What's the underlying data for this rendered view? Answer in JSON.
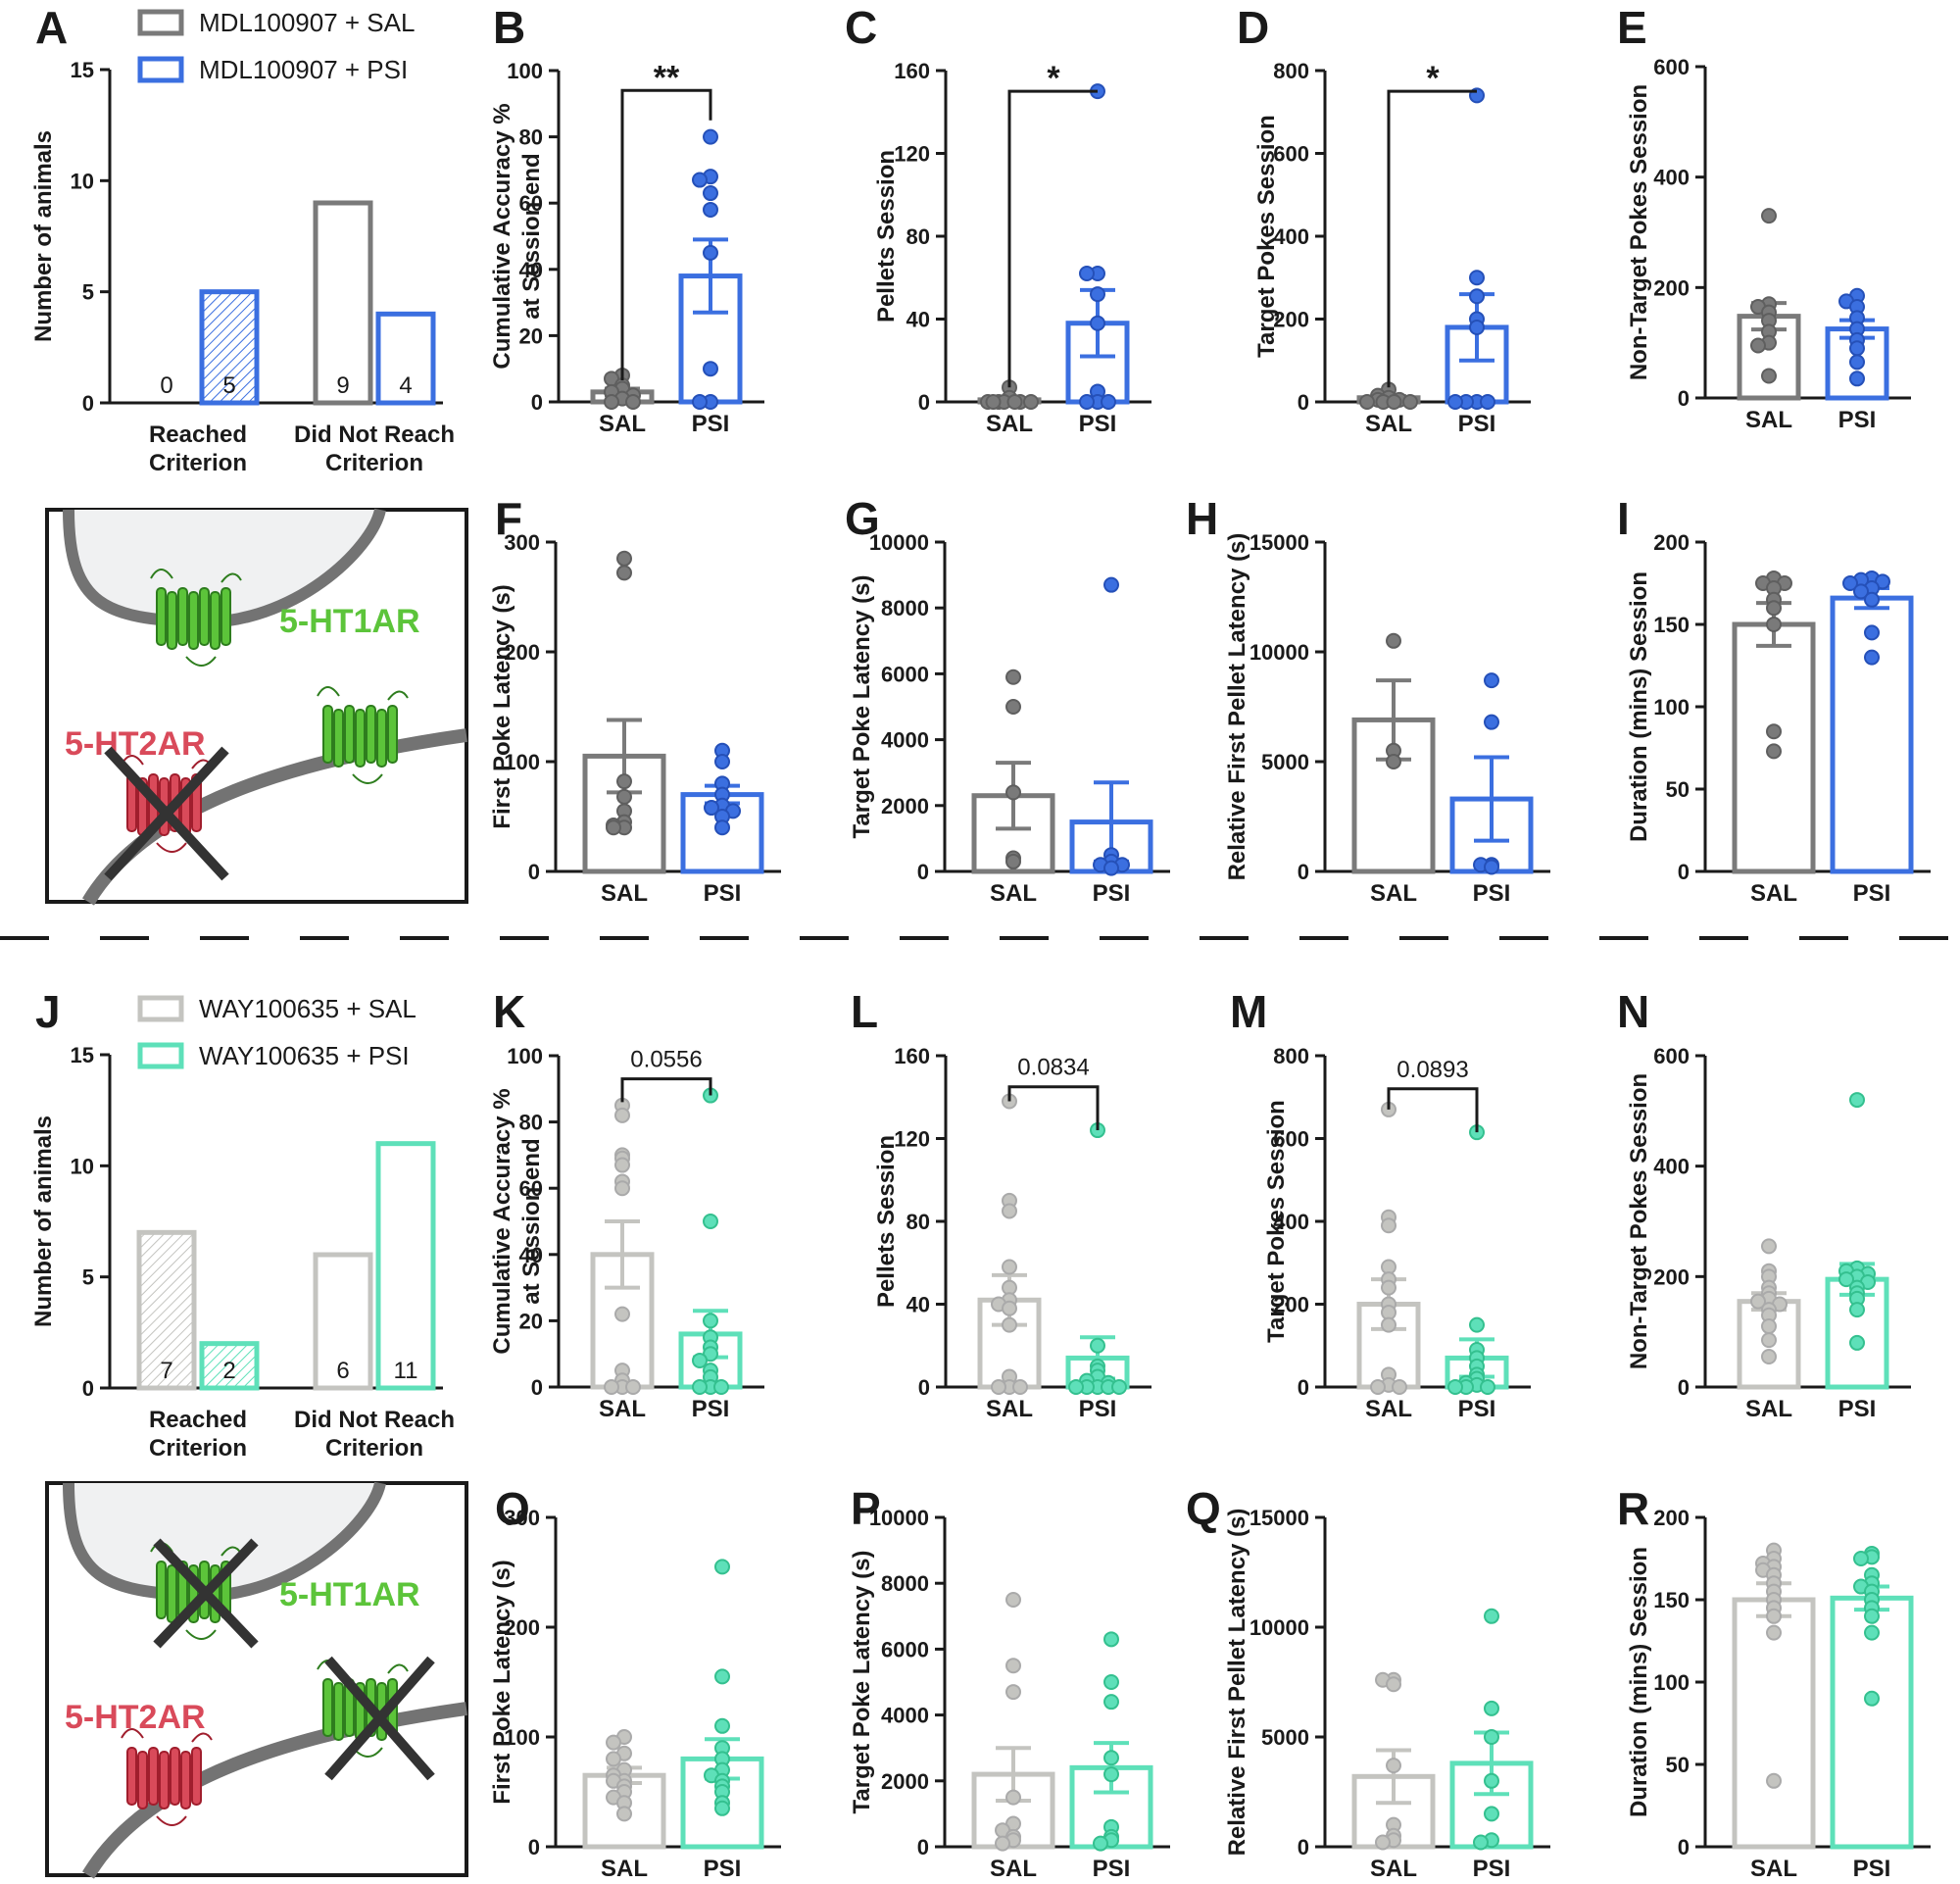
{
  "colors": {
    "sal_mdl": "#7a7a7a",
    "psi_mdl": "#3b6fe0",
    "sal_way": "#c4c4c0",
    "psi_way": "#5ee0b9",
    "ht1a": "#5cc43a",
    "ht2a": "#d94a5a",
    "ht2a_dark": "#a01e2d",
    "membrane": "#737373",
    "text": "#1a1a1a"
  },
  "legends": {
    "mdl": [
      "MDL100907 + SAL",
      "MDL100907 + PSI"
    ],
    "way": [
      "WAY100635 + SAL",
      "WAY100635 + PSI"
    ]
  },
  "schematics": [
    {
      "ht1a_label": "5-HT1AR",
      "ht2a_label": "5-HT2AR",
      "crossed": "5-HT2AR"
    },
    {
      "ht1a_label": "5-HT1AR",
      "ht2a_label": "5-HT2AR",
      "crossed": "5-HT1AR"
    }
  ],
  "chart_data": [
    {
      "panel": "A",
      "type": "bar",
      "ylabel": "Number of animals",
      "ylim": [
        0,
        15
      ],
      "yticks": [
        0,
        5,
        10,
        15
      ],
      "categories": [
        "Reached Criterion",
        "Did Not Reach Criterion"
      ],
      "series": [
        {
          "name": "MDL100907 + SAL",
          "values": [
            0,
            9
          ]
        },
        {
          "name": "MDL100907 + PSI",
          "values": [
            5,
            4
          ]
        }
      ]
    },
    {
      "panel": "B",
      "type": "bar",
      "ylabel": [
        "Cumulative Accuracy %",
        "at Session end"
      ],
      "ylim": [
        0,
        100
      ],
      "yticks": [
        0,
        20,
        40,
        60,
        80,
        100
      ],
      "categories": [
        "SAL",
        "PSI"
      ],
      "means": [
        3,
        38
      ],
      "sem": [
        1,
        11
      ],
      "points": [
        [
          8,
          7,
          5,
          4,
          3,
          2,
          1,
          0,
          0
        ],
        [
          80,
          68,
          67,
          63,
          58,
          45,
          10,
          0,
          0
        ]
      ],
      "sig": "**"
    },
    {
      "panel": "C",
      "type": "bar",
      "ylabel": "Pellets Session",
      "ylim": [
        0,
        160
      ],
      "yticks": [
        0,
        40,
        80,
        120,
        160
      ],
      "categories": [
        "SAL",
        "PSI"
      ],
      "means": [
        1,
        38
      ],
      "sem": [
        0.7,
        16
      ],
      "points": [
        [
          7,
          2,
          0,
          0,
          0,
          0,
          0,
          0,
          0
        ],
        [
          150,
          62,
          62,
          52,
          38,
          5,
          0,
          0,
          0
        ]
      ],
      "sig": "*"
    },
    {
      "panel": "D",
      "type": "bar",
      "ylabel": "Target Pokes Session",
      "ylim": [
        0,
        800
      ],
      "yticks": [
        0,
        200,
        400,
        600,
        800
      ],
      "categories": [
        "SAL",
        "PSI"
      ],
      "means": [
        10,
        180
      ],
      "sem": [
        4,
        80
      ],
      "points": [
        [
          30,
          15,
          10,
          5,
          5,
          0,
          0,
          0,
          0
        ],
        [
          740,
          300,
          255,
          200,
          180,
          0,
          0,
          0,
          0
        ]
      ],
      "sig": "*"
    },
    {
      "panel": "E",
      "type": "bar",
      "ylabel": "Non-Target Pokes Session",
      "ylim": [
        0,
        600
      ],
      "yticks": [
        0,
        200,
        400,
        600
      ],
      "categories": [
        "SAL",
        "PSI"
      ],
      "means": [
        148,
        125
      ],
      "sem": [
        24,
        16
      ],
      "points": [
        [
          330,
          170,
          165,
          155,
          140,
          120,
          100,
          95,
          40
        ],
        [
          185,
          175,
          165,
          145,
          125,
          105,
          90,
          65,
          35
        ]
      ],
      "sig": ""
    },
    {
      "panel": "F",
      "type": "bar",
      "ylabel": "First Poke Latency (s)",
      "ylim": [
        0,
        300
      ],
      "yticks": [
        0,
        100,
        200,
        300
      ],
      "categories": [
        "SAL",
        "PSI"
      ],
      "means": [
        105,
        70
      ],
      "sem": [
        33,
        8
      ],
      "points": [
        [
          285,
          272,
          82,
          68,
          55,
          45,
          42,
          40,
          40
        ],
        [
          110,
          100,
          80,
          70,
          60,
          58,
          55,
          50,
          40
        ]
      ],
      "sig": ""
    },
    {
      "panel": "G",
      "type": "bar",
      "ylabel": "Target Poke Latency (s)",
      "ylim": [
        0,
        10000
      ],
      "yticks": [
        0,
        2000,
        4000,
        6000,
        8000,
        10000
      ],
      "categories": [
        "SAL",
        "PSI"
      ],
      "means": [
        2300,
        1500
      ],
      "sem": [
        1000,
        1200
      ],
      "points": [
        [
          5900,
          5000,
          2400,
          400,
          300
        ],
        [
          8700,
          500,
          300,
          200,
          200,
          100
        ]
      ],
      "sig": ""
    },
    {
      "panel": "H",
      "type": "bar",
      "ylabel": "Relative First Pellet Latency (s)",
      "ylim": [
        0,
        15000
      ],
      "yticks": [
        0,
        5000,
        10000,
        15000
      ],
      "categories": [
        "SAL",
        "PSI"
      ],
      "means": [
        6900,
        3300
      ],
      "sem": [
        1800,
        1900
      ],
      "points": [
        [
          10500,
          5500,
          5000
        ],
        [
          8700,
          6800,
          300,
          300,
          200
        ]
      ],
      "sig": ""
    },
    {
      "panel": "I",
      "type": "bar",
      "ylabel": "Duration (mins) Session",
      "ylim": [
        0,
        200
      ],
      "yticks": [
        0,
        50,
        100,
        150,
        200
      ],
      "categories": [
        "SAL",
        "PSI"
      ],
      "means": [
        150,
        166
      ],
      "sem": [
        13,
        6
      ],
      "points": [
        [
          178,
          175,
          175,
          172,
          165,
          160,
          150,
          85,
          73
        ],
        [
          178,
          177,
          176,
          175,
          172,
          170,
          165,
          145,
          130
        ]
      ],
      "sig": ""
    },
    {
      "panel": "J",
      "type": "bar",
      "ylabel": "Number of animals",
      "ylim": [
        0,
        15
      ],
      "yticks": [
        0,
        5,
        10,
        15
      ],
      "categories": [
        "Reached Criterion",
        "Did Not Reach Criterion"
      ],
      "series": [
        {
          "name": "WAY100635 + SAL",
          "values": [
            7,
            6
          ]
        },
        {
          "name": "WAY100635 + PSI",
          "values": [
            2,
            11
          ]
        }
      ]
    },
    {
      "panel": "K",
      "type": "bar",
      "ylabel": [
        "Cumulative Accuracy %",
        "at Session end"
      ],
      "ylim": [
        0,
        100
      ],
      "yticks": [
        0,
        20,
        40,
        60,
        80,
        100
      ],
      "categories": [
        "SAL",
        "PSI"
      ],
      "means": [
        40,
        16
      ],
      "sem": [
        10,
        7
      ],
      "points": [
        [
          85,
          82,
          70,
          69,
          67,
          62,
          60,
          22,
          5,
          2,
          0,
          0,
          0
        ],
        [
          88,
          50,
          20,
          15,
          12,
          10,
          8,
          5,
          3,
          0,
          0,
          0
        ]
      ],
      "sig": "0.0556"
    },
    {
      "panel": "L",
      "type": "bar",
      "ylabel": "Pellets Session",
      "ylim": [
        0,
        160
      ],
      "yticks": [
        0,
        40,
        80,
        120,
        160
      ],
      "categories": [
        "SAL",
        "PSI"
      ],
      "means": [
        42,
        14
      ],
      "sem": [
        12,
        10
      ],
      "points": [
        [
          138,
          90,
          85,
          58,
          48,
          42,
          40,
          38,
          30,
          5,
          0,
          0,
          0
        ],
        [
          124,
          20,
          10,
          8,
          5,
          3,
          2,
          0,
          0,
          0,
          0,
          0
        ]
      ],
      "sig": "0.0834"
    },
    {
      "panel": "M",
      "type": "bar",
      "ylabel": "Target Pokes Session",
      "ylim": [
        0,
        800
      ],
      "yticks": [
        0,
        200,
        400,
        600,
        800
      ],
      "categories": [
        "SAL",
        "PSI"
      ],
      "means": [
        200,
        70
      ],
      "sem": [
        60,
        45
      ],
      "points": [
        [
          670,
          410,
          390,
          290,
          260,
          240,
          200,
          180,
          150,
          30,
          5,
          0,
          0
        ],
        [
          615,
          150,
          90,
          70,
          50,
          30,
          20,
          10,
          5,
          0,
          0,
          0
        ]
      ],
      "sig": "0.0893"
    },
    {
      "panel": "N",
      "type": "bar",
      "ylabel": "Non-Target Pokes Session",
      "ylim": [
        0,
        600
      ],
      "yticks": [
        0,
        200,
        400,
        600
      ],
      "categories": [
        "SAL",
        "PSI"
      ],
      "means": [
        155,
        195
      ],
      "sem": [
        15,
        28
      ],
      "points": [
        [
          255,
          210,
          200,
          180,
          170,
          160,
          155,
          150,
          140,
          130,
          110,
          85,
          55
        ],
        [
          520,
          215,
          210,
          205,
          200,
          195,
          190,
          180,
          170,
          160,
          140,
          80
        ]
      ],
      "sig": ""
    },
    {
      "panel": "O",
      "type": "bar",
      "ylabel": "First Poke Latency (s)",
      "ylim": [
        0,
        300
      ],
      "yticks": [
        0,
        100,
        200,
        300
      ],
      "categories": [
        "SAL",
        "PSI"
      ],
      "means": [
        65,
        80
      ],
      "sem": [
        7,
        18
      ],
      "points": [
        [
          100,
          95,
          85,
          80,
          70,
          65,
          60,
          60,
          55,
          50,
          45,
          40,
          30
        ],
        [
          255,
          155,
          110,
          90,
          80,
          70,
          65,
          60,
          55,
          50,
          40,
          35
        ]
      ],
      "sig": ""
    },
    {
      "panel": "P",
      "type": "bar",
      "ylabel": "Target Poke Latency (s)",
      "ylim": [
        0,
        10000
      ],
      "yticks": [
        0,
        2000,
        4000,
        6000,
        8000,
        10000
      ],
      "categories": [
        "SAL",
        "PSI"
      ],
      "means": [
        2200,
        2400
      ],
      "sem": [
        800,
        750
      ],
      "points": [
        [
          7500,
          5500,
          4700,
          1500,
          700,
          500,
          300,
          200,
          100
        ],
        [
          6300,
          5000,
          4400,
          2700,
          2200,
          600,
          300,
          200,
          100
        ]
      ],
      "sig": ""
    },
    {
      "panel": "Q",
      "type": "bar",
      "ylabel": "Relative First Pellet Latency (s)",
      "ylim": [
        0,
        15000
      ],
      "yticks": [
        0,
        5000,
        10000,
        15000
      ],
      "categories": [
        "SAL",
        "PSI"
      ],
      "means": [
        3200,
        3800
      ],
      "sem": [
        1200,
        1400
      ],
      "points": [
        [
          7600,
          7600,
          7400,
          3700,
          1000,
          500,
          300,
          200
        ],
        [
          10500,
          6300,
          5000,
          3000,
          1500,
          300,
          200
        ]
      ],
      "sig": ""
    },
    {
      "panel": "R",
      "type": "bar",
      "ylabel": "Duration (mins) Session",
      "ylim": [
        0,
        200
      ],
      "yticks": [
        0,
        50,
        100,
        150,
        200
      ],
      "categories": [
        "SAL",
        "PSI"
      ],
      "means": [
        150,
        151
      ],
      "sem": [
        10,
        7
      ],
      "points": [
        [
          180,
          175,
          172,
          170,
          168,
          165,
          160,
          155,
          150,
          145,
          140,
          130,
          40
        ],
        [
          178,
          176,
          175,
          165,
          160,
          158,
          155,
          150,
          145,
          140,
          130,
          90
        ]
      ],
      "sig": ""
    }
  ]
}
